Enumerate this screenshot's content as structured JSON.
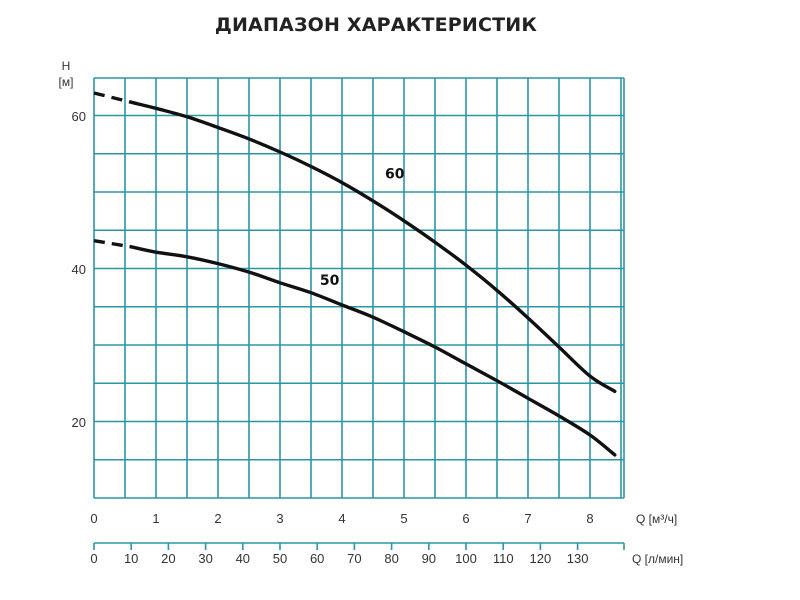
{
  "chart_data": {
    "type": "line",
    "title": "ДИАПАЗОН ХАРАКТЕРИСТИК",
    "ylabel": "H",
    "yunit": "[м]",
    "xlabel": "Q [м³/ч]",
    "x2label": "Q [л/мин]",
    "xlim": [
      0,
      8.5
    ],
    "ylim": [
      10,
      68
    ],
    "x2_ticks": [
      0,
      10,
      20,
      30,
      40,
      50,
      60,
      70,
      80,
      90,
      100,
      110,
      120,
      130
    ],
    "grid": true,
    "grid_color": "#2b95a8",
    "line_color": "#111111",
    "x_ticks": [
      0,
      1,
      2,
      3,
      4,
      5,
      6,
      7,
      8
    ],
    "y_ticks": [
      20,
      40,
      60
    ],
    "series": [
      {
        "name": "60",
        "dashed_until": 0.6,
        "x": [
          0,
          0.6,
          1,
          1.5,
          2,
          2.5,
          3,
          3.5,
          4,
          4.5,
          5,
          5.5,
          6,
          6.5,
          7,
          7.5,
          8,
          8.4
        ],
        "values": [
          63.0,
          61.8,
          61.0,
          59.9,
          58.5,
          57.0,
          55.3,
          53.4,
          51.3,
          48.9,
          46.3,
          43.5,
          40.5,
          37.2,
          33.6,
          29.8,
          26.0,
          24.0
        ]
      },
      {
        "name": "50",
        "dashed_until": 0.6,
        "x": [
          0,
          0.6,
          1,
          1.5,
          2,
          2.5,
          3,
          3.5,
          4,
          4.5,
          5,
          5.5,
          6,
          6.5,
          7,
          7.5,
          8,
          8.4
        ],
        "values": [
          43.7,
          42.9,
          42.2,
          41.6,
          40.7,
          39.6,
          38.2,
          36.9,
          35.3,
          33.7,
          31.8,
          29.8,
          27.6,
          25.4,
          23.1,
          20.8,
          18.3,
          15.7
        ]
      }
    ]
  }
}
